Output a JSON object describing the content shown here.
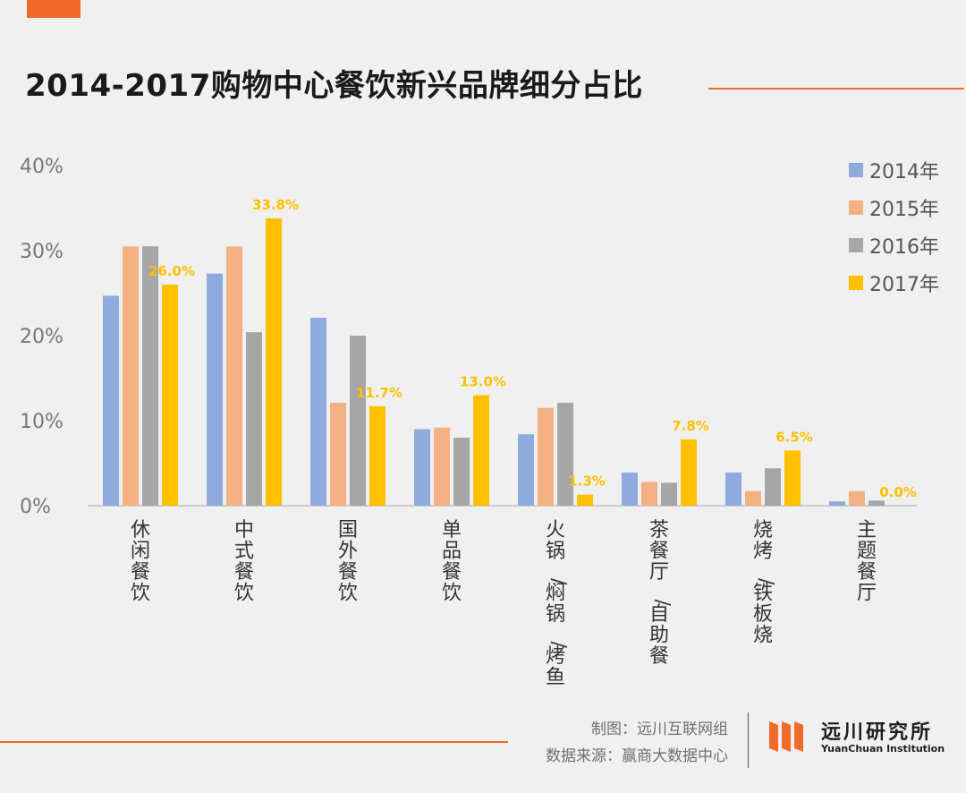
{
  "title": "2014-2017购物中心餐饮新兴品牌细分占比",
  "colors": {
    "accent": "#f26b2a",
    "series": [
      "#8faadc",
      "#f4b183",
      "#a6a6a6",
      "#ffc000"
    ],
    "label": "#ffc000",
    "axis_text": "#777777"
  },
  "chart_data": {
    "type": "bar",
    "title": "2014-2017购物中心餐饮新兴品牌细分占比",
    "xlabel": "",
    "ylabel": "",
    "ylim": [
      0,
      40
    ],
    "yticks": [
      "0%",
      "10%",
      "20%",
      "30%",
      "40%"
    ],
    "grid": false,
    "legend_position": "top-right",
    "categories": [
      "休闲餐饮",
      "中式餐饮",
      "国外餐饮",
      "单品餐饮",
      "火锅/焖锅/烤鱼",
      "茶餐厅/自助餐",
      "烧烤/铁板烧",
      "主题餐厅"
    ],
    "series": [
      {
        "name": "2014年",
        "values": [
          24.7,
          27.3,
          22.1,
          9.0,
          8.4,
          3.9,
          3.9,
          0.5
        ]
      },
      {
        "name": "2015年",
        "values": [
          30.5,
          30.5,
          12.1,
          9.2,
          11.5,
          2.8,
          1.7,
          1.7
        ]
      },
      {
        "name": "2016年",
        "values": [
          30.5,
          20.4,
          20.0,
          8.0,
          12.1,
          2.7,
          4.4,
          0.6
        ]
      },
      {
        "name": "2017年",
        "values": [
          26.0,
          33.8,
          11.7,
          13.0,
          1.3,
          7.8,
          6.5,
          0.0
        ]
      }
    ],
    "data_labels": {
      "series": "2017年",
      "labels": [
        "26.0%",
        "33.8%",
        "11.7%",
        "13.0%",
        "1.3%",
        "7.8%",
        "6.5%",
        "0.0%"
      ]
    }
  },
  "footer": {
    "credit_line1": "制图：远川互联网组",
    "credit_line2": "数据来源：赢商大数据中心",
    "logo_name": "远川研究所",
    "logo_en": "YuanChuan Institution"
  }
}
